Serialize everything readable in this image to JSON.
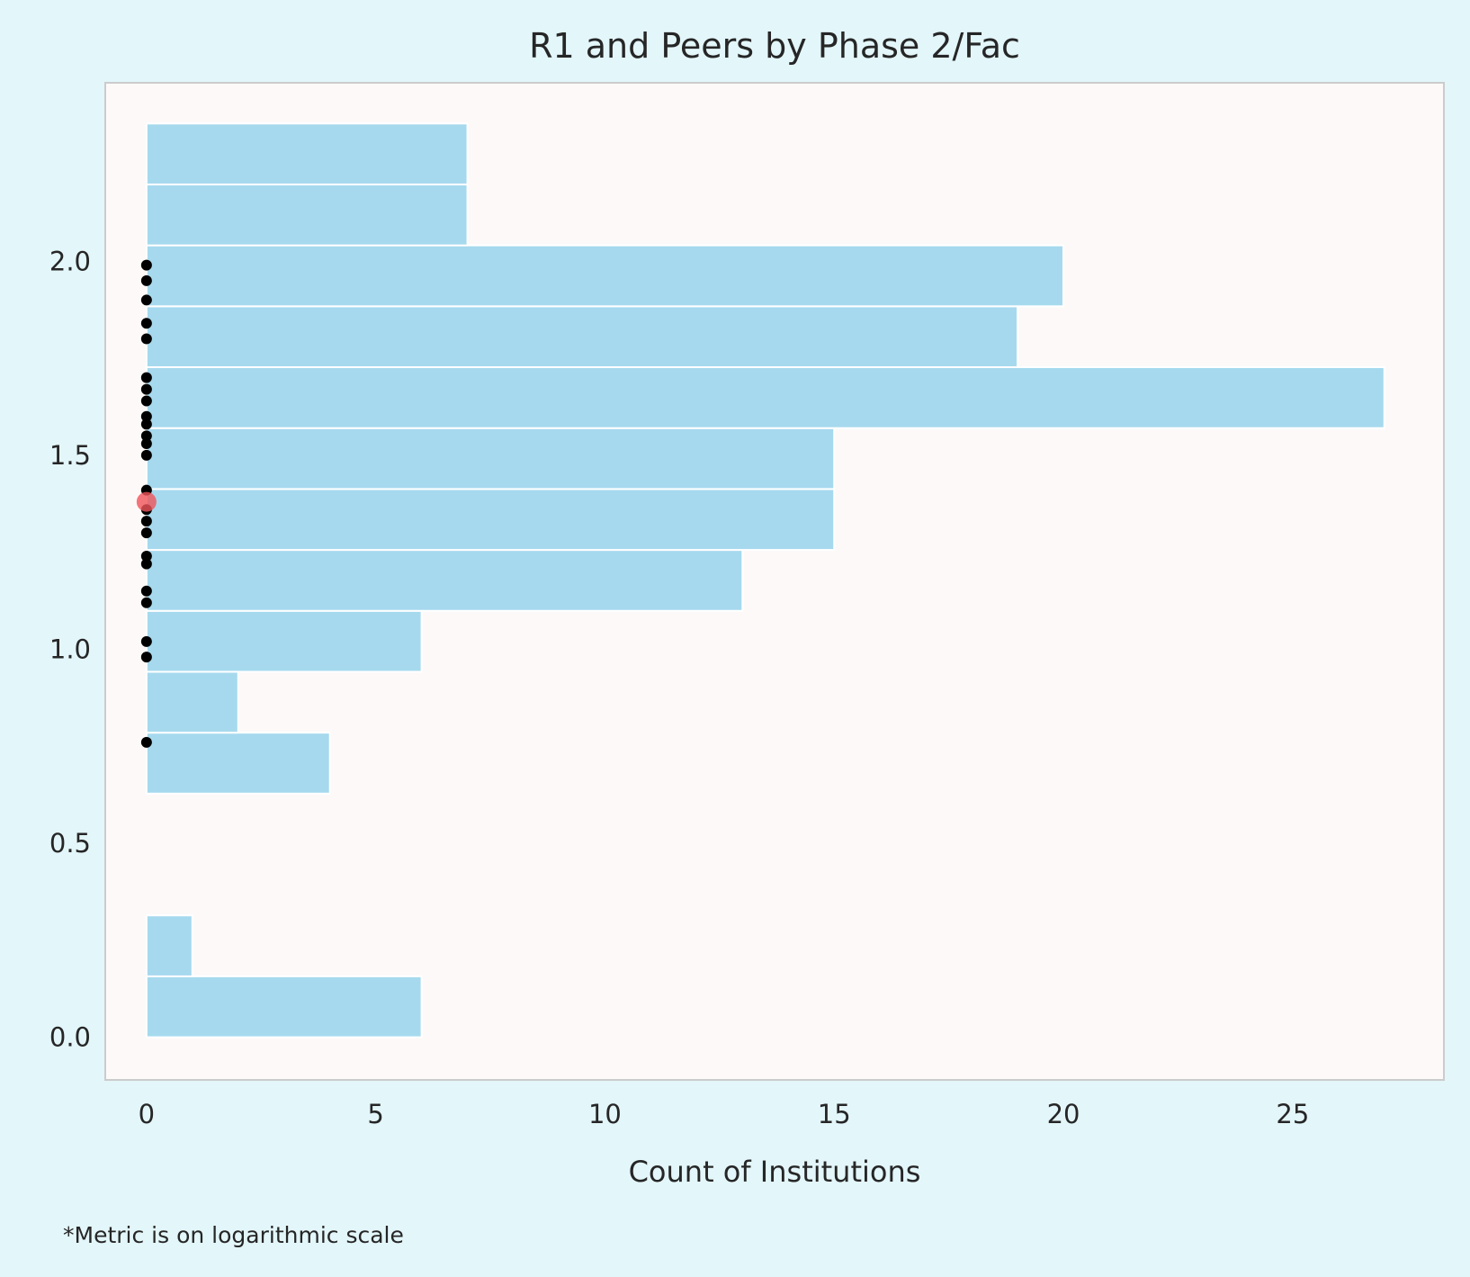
{
  "chart_data": {
    "type": "bar",
    "orientation": "horizontal",
    "title": "R1 and Peers by Phase 2/Fac",
    "xlabel": "Count of Institutions",
    "ylabel": "",
    "xlim": [
      -0.9,
      28.3
    ],
    "ylim": [
      -0.11,
      2.46
    ],
    "xticks": [
      0,
      5,
      10,
      15,
      20,
      25
    ],
    "yticks": [
      0.0,
      0.5,
      1.0,
      1.5,
      2.0
    ],
    "xtick_labels": [
      "0",
      "5",
      "10",
      "15",
      "20",
      "25"
    ],
    "ytick_labels": [
      "0.0",
      "0.5",
      "1.0",
      "1.5",
      "2.0"
    ],
    "grid": false,
    "footnote": "*Metric is on logarithmic scale",
    "bin_edges": [
      0.0,
      0.157,
      0.314,
      0.471,
      0.628,
      0.785,
      0.942,
      1.099,
      1.256,
      1.413,
      1.57,
      1.727,
      1.884,
      2.041,
      2.198,
      2.355
    ],
    "counts": [
      6,
      1,
      0,
      0,
      4,
      2,
      6,
      13,
      15,
      15,
      27,
      19,
      20,
      7,
      7
    ],
    "peer_points": [
      0.76,
      0.98,
      1.02,
      1.12,
      1.15,
      1.22,
      1.24,
      1.3,
      1.33,
      1.36,
      1.41,
      1.5,
      1.53,
      1.55,
      1.58,
      1.6,
      1.64,
      1.67,
      1.7,
      1.8,
      1.84,
      1.9,
      1.95,
      1.99
    ],
    "highlight_point": 1.38,
    "colors": {
      "background": "#e3f6fa",
      "plot_background": "#fdf9f9",
      "bar": "#a6d9ee",
      "bar_edge": "#ffffff",
      "point": "#000000",
      "highlight": "#f0545a",
      "frame": "#cccccc"
    }
  }
}
